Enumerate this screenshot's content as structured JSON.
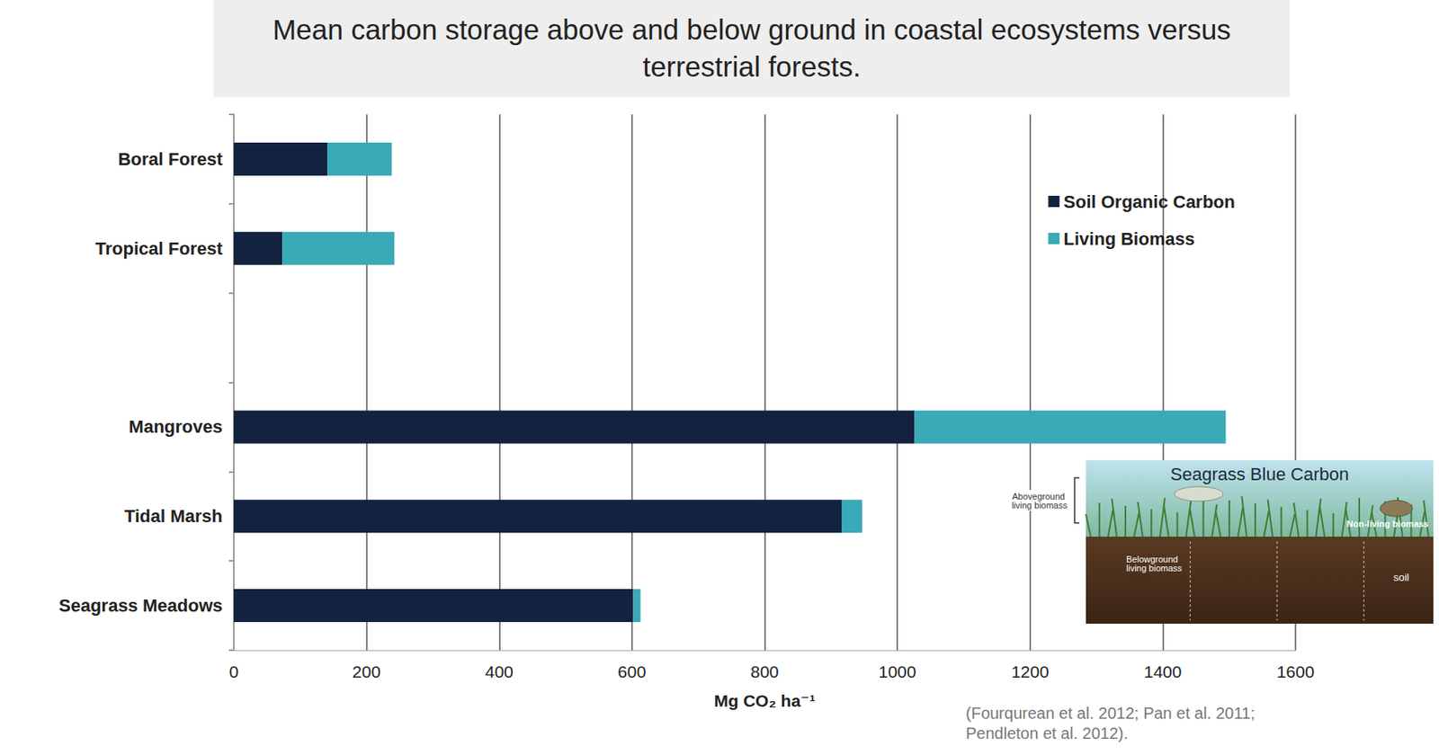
{
  "chart_data": {
    "type": "bar",
    "title": "Mean carbon storage above and below ground in coastal ecosystems versus terrestrial forests.",
    "x_label": "Mg CO₂ ha⁻¹",
    "orientation": "horizontal",
    "stacked": true,
    "grid": true,
    "legend": "upper right",
    "data_labels": false,
    "categories": [
      "Boral Forest",
      "Tropical Forest",
      null,
      "Mangroves",
      "Tidal Marsh",
      "Seagrass Meadows"
    ],
    "series": [
      {
        "name": "Soil Organic Carbon",
        "color": "#13223f",
        "values": [
          141,
          73,
          null,
          1026,
          916,
          602
        ]
      },
      {
        "name": "Living Biomass",
        "color": "#3aa9b8",
        "values": [
          97,
          169,
          null,
          469,
          31,
          11
        ]
      }
    ],
    "xlim": [
      0,
      1600
    ],
    "xticks": [
      0,
      200,
      400,
      600,
      800,
      1000,
      1200,
      1400,
      1600
    ],
    "annotations": {
      "source": "(Fourqurean et al. 2012; Pan et al. 2011; Pendleton et al. 2012).",
      "inset": {
        "title": "Seagrass Blue Carbon",
        "labels": [
          "Aboveground living biomass",
          "Belowground living biomass",
          "Non-living biomass",
          "soil"
        ]
      }
    }
  }
}
